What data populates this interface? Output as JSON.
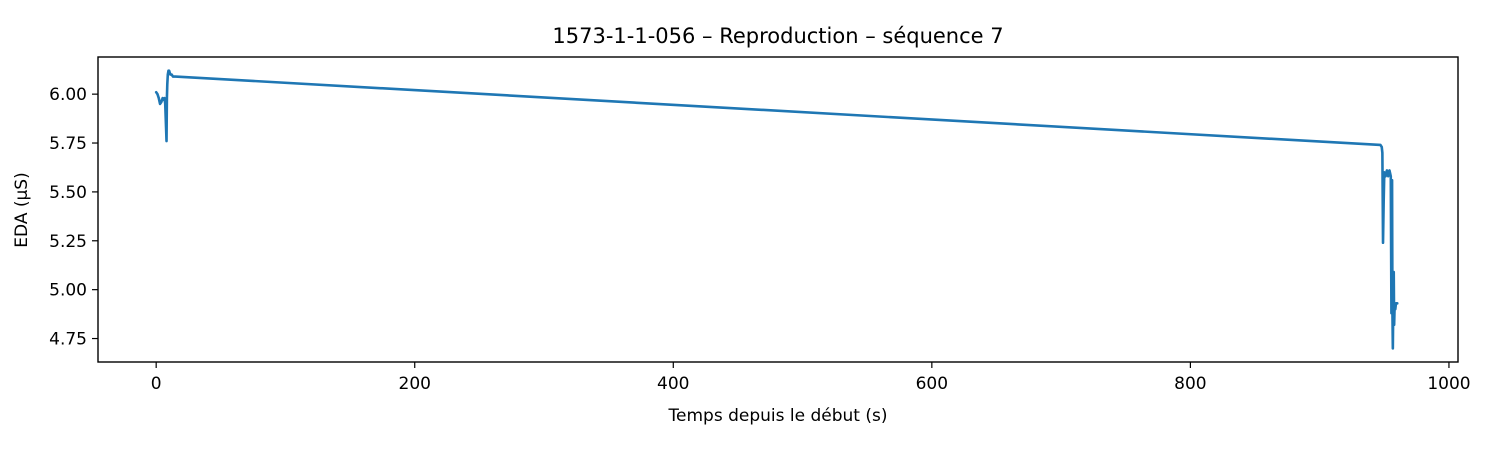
{
  "chart_data": {
    "type": "line",
    "title": "1573-1-1-056 – Reproduction – séquence 7",
    "xlabel": "Temps depuis le début (s)",
    "ylabel": "EDA (µS)",
    "xlim": [
      -45,
      1007
    ],
    "ylim": [
      4.63,
      6.19
    ],
    "xticks": [
      0,
      200,
      400,
      600,
      800,
      1000
    ],
    "xtick_labels": [
      "0",
      "200",
      "400",
      "600",
      "800",
      "1000"
    ],
    "yticks": [
      4.75,
      5.0,
      5.25,
      5.5,
      5.75,
      6.0
    ],
    "ytick_labels": [
      "4.75",
      "5.00",
      "5.25",
      "5.50",
      "5.75",
      "6.00"
    ],
    "grid": false,
    "legend": "none",
    "series": [
      {
        "color": "#1f77b4",
        "x": [
          0,
          1,
          2,
          3,
          4,
          5,
          6,
          6.5,
          7,
          8,
          8.3,
          8.6,
          9,
          9.5,
          10,
          11,
          12,
          13,
          15,
          947,
          948,
          948.5,
          949,
          949.5,
          950,
          951,
          952,
          953,
          954,
          955,
          955.5,
          956,
          956.3,
          956.6,
          957,
          957.3,
          957.6,
          958,
          958.5,
          959,
          960
        ],
        "y": [
          6.01,
          6.0,
          5.98,
          5.95,
          5.96,
          5.98,
          5.97,
          5.98,
          5.95,
          5.76,
          5.98,
          6.05,
          6.1,
          6.12,
          6.12,
          6.1,
          6.1,
          6.09,
          6.09,
          5.74,
          5.73,
          5.7,
          5.24,
          5.45,
          5.6,
          5.58,
          5.61,
          5.58,
          5.61,
          5.58,
          4.88,
          5.56,
          4.87,
          4.7,
          4.96,
          5.09,
          4.82,
          4.92,
          4.9,
          4.93,
          4.93
        ]
      }
    ]
  }
}
